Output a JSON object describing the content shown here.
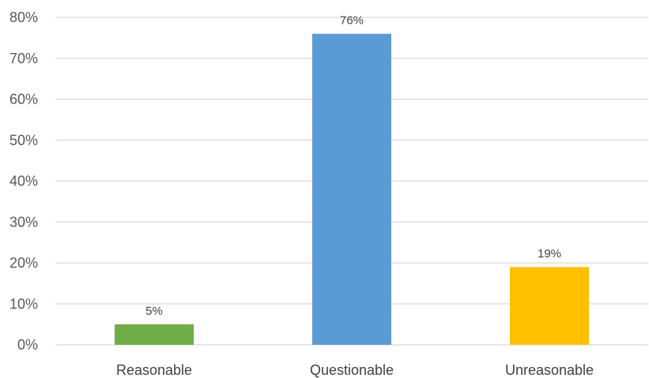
{
  "chart_data": {
    "type": "bar",
    "categories": [
      "Reasonable",
      "Questionable",
      "Unreasonable"
    ],
    "values": [
      5,
      76,
      19
    ],
    "data_labels": [
      "5%",
      "76%",
      "19%"
    ],
    "colors": [
      "#70ad47",
      "#5b9bd5",
      "#ffc000"
    ],
    "ylim": [
      0,
      80
    ],
    "y_ticks": [
      0,
      10,
      20,
      30,
      40,
      50,
      60,
      70,
      80
    ],
    "y_tick_labels": [
      "0%",
      "10%",
      "20%",
      "30%",
      "40%",
      "50%",
      "60%",
      "70%",
      "80%"
    ],
    "grid": true,
    "grid_color": "#d9d9d9",
    "legend": "none",
    "title": "",
    "xlabel": "",
    "ylabel": ""
  }
}
